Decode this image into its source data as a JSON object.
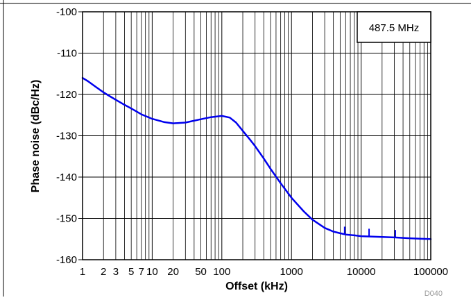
{
  "chart_data": {
    "type": "line",
    "title": "",
    "xlabel": "Offset (kHz)",
    "ylabel": "Phase noise (dBc/Hz)",
    "x_scale": "log",
    "xlim": [
      1,
      100000
    ],
    "ylim": [
      -160,
      -100
    ],
    "grid": true,
    "x_ticks": [
      {
        "value": 1,
        "label": "1"
      },
      {
        "value": 2,
        "label": "2"
      },
      {
        "value": 3,
        "label": "3"
      },
      {
        "value": 5,
        "label": "5"
      },
      {
        "value": 7,
        "label": "7"
      },
      {
        "value": 10,
        "label": "10"
      },
      {
        "value": 20,
        "label": "20"
      },
      {
        "value": 50,
        "label": "50"
      },
      {
        "value": 100,
        "label": "100"
      },
      {
        "value": 1000,
        "label": "1000"
      },
      {
        "value": 10000,
        "label": "10000"
      },
      {
        "value": 100000,
        "label": "100000"
      }
    ],
    "y_ticks": [
      {
        "value": -100,
        "label": "-100"
      },
      {
        "value": -110,
        "label": "-110"
      },
      {
        "value": -120,
        "label": "-120"
      },
      {
        "value": -130,
        "label": "-130"
      },
      {
        "value": -140,
        "label": "-140"
      },
      {
        "value": -150,
        "label": "-150"
      },
      {
        "value": -160,
        "label": "-160"
      }
    ],
    "annotation": "487.5 MHz",
    "figure_id": "D040",
    "line_color": "#0000ee",
    "series": [
      {
        "values": [
          {
            "x": 1,
            "y": -116
          },
          {
            "x": 1.2,
            "y": -116.8
          },
          {
            "x": 1.5,
            "y": -118
          },
          {
            "x": 2,
            "y": -119.5
          },
          {
            "x": 2.5,
            "y": -120.5
          },
          {
            "x": 3,
            "y": -121.3
          },
          {
            "x": 4,
            "y": -122.5
          },
          {
            "x": 5,
            "y": -123.4
          },
          {
            "x": 7,
            "y": -124.8
          },
          {
            "x": 10,
            "y": -125.9
          },
          {
            "x": 15,
            "y": -126.7
          },
          {
            "x": 20,
            "y": -127
          },
          {
            "x": 30,
            "y": -126.8
          },
          {
            "x": 50,
            "y": -126
          },
          {
            "x": 70,
            "y": -125.5
          },
          {
            "x": 100,
            "y": -125.2
          },
          {
            "x": 130,
            "y": -125.6
          },
          {
            "x": 160,
            "y": -126.8
          },
          {
            "x": 200,
            "y": -128.8
          },
          {
            "x": 250,
            "y": -130.8
          },
          {
            "x": 300,
            "y": -132.5
          },
          {
            "x": 400,
            "y": -135.5
          },
          {
            "x": 500,
            "y": -138
          },
          {
            "x": 700,
            "y": -141.5
          },
          {
            "x": 1000,
            "y": -145
          },
          {
            "x": 1500,
            "y": -148.3
          },
          {
            "x": 2000,
            "y": -150.3
          },
          {
            "x": 3000,
            "y": -152.3
          },
          {
            "x": 4000,
            "y": -153.2
          },
          {
            "x": 5000,
            "y": -153.6
          },
          {
            "x": 6000,
            "y": -153.9
          },
          {
            "x": 8000,
            "y": -154.1
          },
          {
            "x": 10000,
            "y": -154.3
          },
          {
            "x": 20000,
            "y": -154.5
          },
          {
            "x": 30000,
            "y": -154.6
          },
          {
            "x": 50000,
            "y": -154.8
          },
          {
            "x": 70000,
            "y": -154.9
          },
          {
            "x": 100000,
            "y": -155
          }
        ]
      }
    ],
    "spurs": [
      {
        "x": 5800,
        "y": -152
      },
      {
        "x": 13000,
        "y": -152.5
      },
      {
        "x": 31000,
        "y": -152.8
      }
    ]
  }
}
